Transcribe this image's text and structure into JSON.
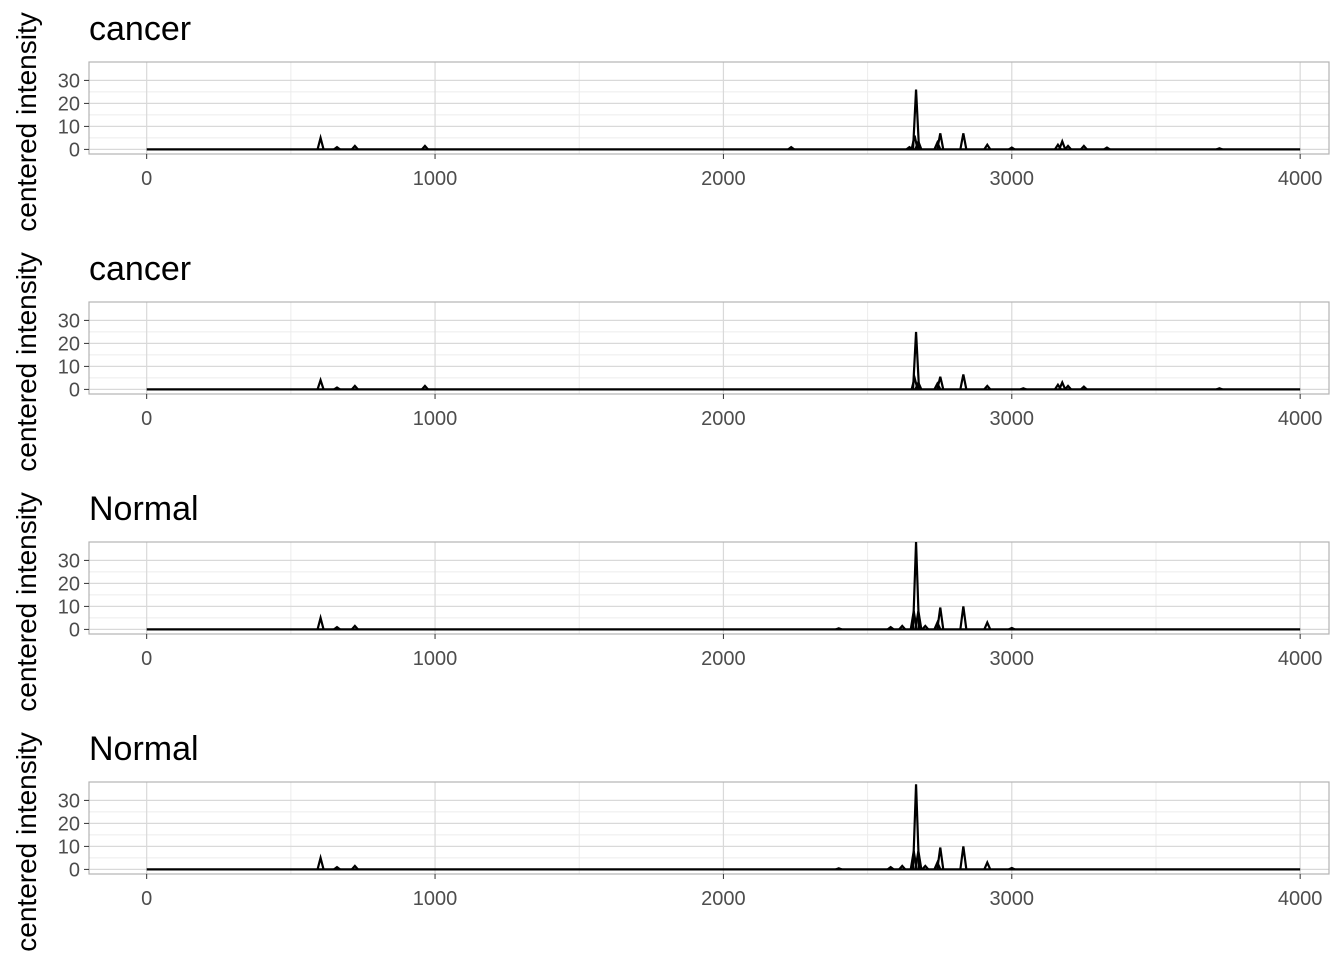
{
  "chart_data": [
    {
      "type": "line",
      "title": "cancer",
      "ylabel": "centered intensity",
      "xlabel": "",
      "xlim": [
        -200,
        4100
      ],
      "ylim": [
        -2,
        38
      ],
      "xticks": [
        0,
        1000,
        2000,
        3000,
        4000
      ],
      "yticks": [
        0,
        10,
        20,
        30
      ],
      "grid": true,
      "baseline": 0,
      "x_range": [
        0,
        4000
      ],
      "peaks": [
        {
          "x": 603,
          "y": 5
        },
        {
          "x": 660,
          "y": 1
        },
        {
          "x": 722,
          "y": 1.5
        },
        {
          "x": 965,
          "y": 1.5
        },
        {
          "x": 2235,
          "y": 1
        },
        {
          "x": 2645,
          "y": 1
        },
        {
          "x": 2663,
          "y": 6
        },
        {
          "x": 2668,
          "y": 26
        },
        {
          "x": 2676,
          "y": 3.5
        },
        {
          "x": 2742,
          "y": 3
        },
        {
          "x": 2752,
          "y": 7
        },
        {
          "x": 2832,
          "y": 7
        },
        {
          "x": 2915,
          "y": 2
        },
        {
          "x": 3000,
          "y": 0.8
        },
        {
          "x": 3160,
          "y": 2
        },
        {
          "x": 3175,
          "y": 3.5
        },
        {
          "x": 3195,
          "y": 1.5
        },
        {
          "x": 3250,
          "y": 1.5
        },
        {
          "x": 3330,
          "y": 0.8
        },
        {
          "x": 3720,
          "y": 0.5
        }
      ]
    },
    {
      "type": "line",
      "title": "cancer",
      "ylabel": "centered intensity",
      "xlabel": "",
      "xlim": [
        -200,
        4100
      ],
      "ylim": [
        -2,
        38
      ],
      "xticks": [
        0,
        1000,
        2000,
        3000,
        4000
      ],
      "yticks": [
        0,
        10,
        20,
        30
      ],
      "grid": true,
      "baseline": 0,
      "x_range": [
        0,
        4000
      ],
      "peaks": [
        {
          "x": 603,
          "y": 4
        },
        {
          "x": 660,
          "y": 0.8
        },
        {
          "x": 722,
          "y": 1.5
        },
        {
          "x": 965,
          "y": 1.5
        },
        {
          "x": 2663,
          "y": 5
        },
        {
          "x": 2668,
          "y": 25
        },
        {
          "x": 2676,
          "y": 3
        },
        {
          "x": 2742,
          "y": 2.5
        },
        {
          "x": 2752,
          "y": 5.5
        },
        {
          "x": 2832,
          "y": 6.5
        },
        {
          "x": 2915,
          "y": 1.5
        },
        {
          "x": 3040,
          "y": 0.5
        },
        {
          "x": 3160,
          "y": 2
        },
        {
          "x": 3175,
          "y": 3
        },
        {
          "x": 3195,
          "y": 1.5
        },
        {
          "x": 3250,
          "y": 1.2
        },
        {
          "x": 3720,
          "y": 0.5
        }
      ]
    },
    {
      "type": "line",
      "title": "Normal",
      "ylabel": "centered intensity",
      "xlabel": "",
      "xlim": [
        -200,
        4100
      ],
      "ylim": [
        -2,
        38
      ],
      "xticks": [
        0,
        1000,
        2000,
        3000,
        4000
      ],
      "yticks": [
        0,
        10,
        20,
        30
      ],
      "grid": true,
      "baseline": 0,
      "x_range": [
        0,
        4000
      ],
      "peaks": [
        {
          "x": 603,
          "y": 5
        },
        {
          "x": 660,
          "y": 1
        },
        {
          "x": 722,
          "y": 1.5
        },
        {
          "x": 2400,
          "y": 0.5
        },
        {
          "x": 2580,
          "y": 1
        },
        {
          "x": 2620,
          "y": 1.5
        },
        {
          "x": 2660,
          "y": 8
        },
        {
          "x": 2668,
          "y": 38
        },
        {
          "x": 2676,
          "y": 8
        },
        {
          "x": 2700,
          "y": 1.5
        },
        {
          "x": 2742,
          "y": 3
        },
        {
          "x": 2752,
          "y": 9.5
        },
        {
          "x": 2832,
          "y": 10
        },
        {
          "x": 2915,
          "y": 3
        },
        {
          "x": 3000,
          "y": 0.6
        }
      ]
    },
    {
      "type": "line",
      "title": "Normal",
      "ylabel": "centered intensity",
      "xlabel": "",
      "xlim": [
        -200,
        4100
      ],
      "ylim": [
        -2,
        38
      ],
      "xticks": [
        0,
        1000,
        2000,
        3000,
        4000
      ],
      "yticks": [
        0,
        10,
        20,
        30
      ],
      "grid": true,
      "baseline": 0,
      "x_range": [
        0,
        4000
      ],
      "peaks": [
        {
          "x": 603,
          "y": 5
        },
        {
          "x": 660,
          "y": 1
        },
        {
          "x": 722,
          "y": 1.5
        },
        {
          "x": 2400,
          "y": 0.5
        },
        {
          "x": 2580,
          "y": 1
        },
        {
          "x": 2620,
          "y": 1.5
        },
        {
          "x": 2660,
          "y": 8
        },
        {
          "x": 2668,
          "y": 37
        },
        {
          "x": 2676,
          "y": 8
        },
        {
          "x": 2700,
          "y": 1.5
        },
        {
          "x": 2742,
          "y": 3
        },
        {
          "x": 2752,
          "y": 9.5
        },
        {
          "x": 2832,
          "y": 10
        },
        {
          "x": 2915,
          "y": 3
        },
        {
          "x": 3000,
          "y": 0.6
        }
      ]
    }
  ],
  "colors": {
    "line": "#000000",
    "panel_border": "#b3b3b3",
    "grid_major": "#d9d9d9",
    "grid_minor": "#ececec",
    "tick_text": "#4d4d4d",
    "background": "#ffffff"
  }
}
